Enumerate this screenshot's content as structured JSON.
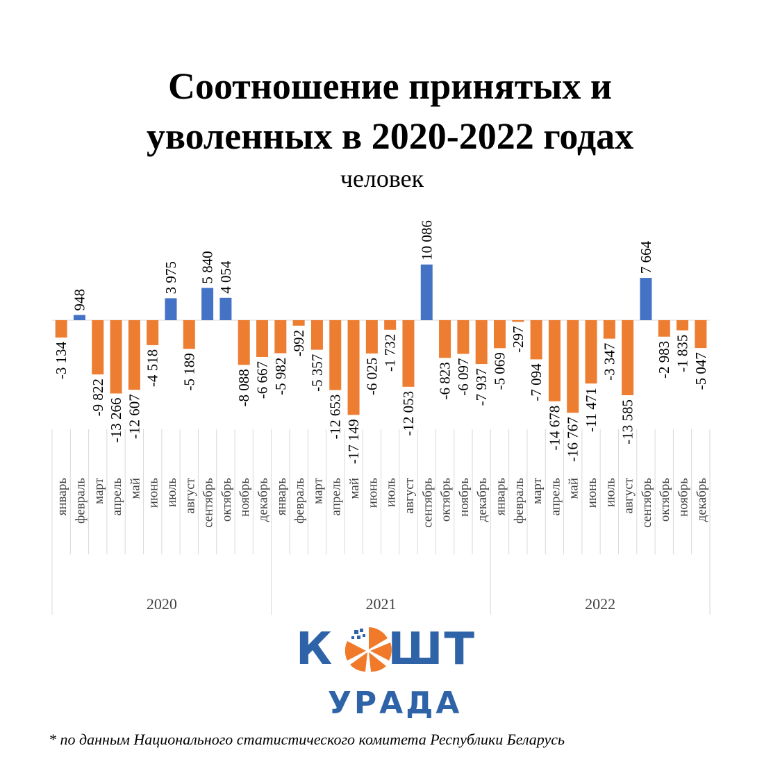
{
  "title_lines": [
    "Соотношение принятых и",
    "уволенных в 2020-2022 годах"
  ],
  "subtitle": "человек",
  "logo": {
    "word_top": [
      "К",
      "ШТ"
    ],
    "word_bottom": "УРАДА"
  },
  "footnote": "* по данным Национального статистического комитета Республики Беларусь",
  "colors": {
    "positive": "#4472c4",
    "negative": "#ed7d31",
    "axis": "#d9d9d9",
    "logo": "#2f63a8",
    "logo_accent": "#f07a2a"
  },
  "chart_data": {
    "type": "bar",
    "years": [
      "2020",
      "2021",
      "2022"
    ],
    "months": [
      "январь",
      "февраль",
      "март",
      "апрель",
      "май",
      "июнь",
      "июль",
      "август",
      "сентябрь",
      "октябрь",
      "ноябрь",
      "декабрь"
    ],
    "values": [
      -3134,
      948,
      -9822,
      -13266,
      -12607,
      -4518,
      3975,
      -5189,
      5840,
      4054,
      -8088,
      -6667,
      -5982,
      -992,
      -5357,
      -12653,
      -17149,
      -6025,
      -1732,
      -12053,
      10086,
      -6823,
      -6097,
      -7937,
      -5069,
      -297,
      -7094,
      -14678,
      -16767,
      -11471,
      -3347,
      -13585,
      7664,
      -2983,
      -1835,
      -5047
    ],
    "labels": [
      "-3 134",
      "948",
      "-9 822",
      "-13 266",
      "-12 607",
      "-4 518",
      "3 975",
      "-5 189",
      "5 840",
      "4 054",
      "-8 088",
      "-6 667",
      "-5 982",
      "-992",
      "-5 357",
      "-12 653",
      "-17 149",
      "-6 025",
      "-1 732",
      "-12 053",
      "10 086",
      "-6 823",
      "-6 097",
      "-7 937",
      "-5 069",
      "-297",
      "-7 094",
      "-14 678",
      "-16 767",
      "-11 471",
      "-3 347",
      "-13 585",
      "7 664",
      "-2 983",
      "-1 835",
      "-5 047"
    ],
    "grid": false,
    "legend": "none"
  }
}
